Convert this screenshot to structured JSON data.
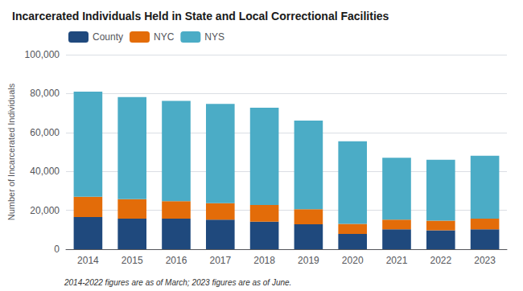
{
  "chart_data": {
    "type": "bar",
    "stacked": true,
    "title": "Incarcerated Individuals Held in State and Local Correctional Facilities",
    "ylabel": "Number of Incarcerated Individuals",
    "annotations": [
      "2014-2022 figures are as of March; 2023 figures are as of June."
    ],
    "categories": [
      "2014",
      "2015",
      "2016",
      "2017",
      "2018",
      "2019",
      "2020",
      "2021",
      "2022",
      "2023"
    ],
    "series": [
      {
        "name": "County",
        "color": "#1f497d",
        "values": [
          16500,
          15700,
          15700,
          15200,
          14200,
          12800,
          7800,
          10200,
          9700,
          10200
        ]
      },
      {
        "name": "NYC",
        "color": "#e36c09",
        "values": [
          10500,
          10000,
          9000,
          8500,
          8500,
          7800,
          5200,
          5000,
          5000,
          5500
        ]
      },
      {
        "name": "NYS",
        "color": "#4bacc6",
        "values": [
          54000,
          52500,
          51500,
          51000,
          50000,
          45500,
          42500,
          31800,
          31300,
          32300
        ]
      }
    ],
    "ylim": [
      0,
      100000
    ],
    "yticks": [
      0,
      {
        "value": 20000,
        "label": "20,000"
      },
      {
        "value": 40000,
        "label": "40,000"
      },
      {
        "value": 60000,
        "label": "60,000"
      },
      {
        "value": 80000,
        "label": "80,000"
      },
      {
        "value": 100000,
        "label": "100,000"
      }
    ],
    "grid": true,
    "legend": "upper left"
  }
}
